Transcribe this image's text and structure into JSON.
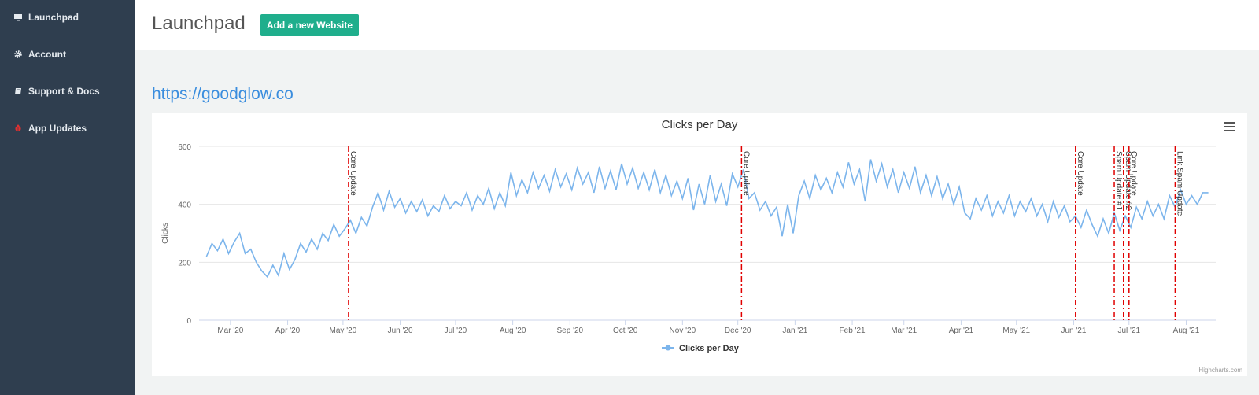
{
  "sidebar": {
    "items": [
      {
        "label": "Launchpad",
        "icon": "monitor-icon"
      },
      {
        "label": "Account",
        "icon": "gear-icon"
      },
      {
        "label": "Support & Docs",
        "icon": "book-icon"
      },
      {
        "label": "App Updates",
        "icon": "bug-icon"
      }
    ]
  },
  "header": {
    "title": "Launchpad",
    "add_button_label": "Add a new Website"
  },
  "site": {
    "url": "https://goodglow.co"
  },
  "chart_credit": "Highcharts.com",
  "colors": {
    "line": "#7cb5ec",
    "annotation": "#e00000",
    "accent": "#1fae8c",
    "sidebar": "#2f3e4f"
  },
  "chart_data": {
    "type": "line",
    "title": "Clicks per Day",
    "ylabel": "Clicks",
    "xlabel": "",
    "ylim": [
      0,
      600
    ],
    "yticks": [
      0,
      200,
      400,
      600
    ],
    "xlim": [
      "2020-02-13",
      "2021-08-17"
    ],
    "xticks": [
      {
        "date": "2020-03-01",
        "label": "Mar '20"
      },
      {
        "date": "2020-04-01",
        "label": "Apr '20"
      },
      {
        "date": "2020-05-01",
        "label": "May '20"
      },
      {
        "date": "2020-06-01",
        "label": "Jun '20"
      },
      {
        "date": "2020-07-01",
        "label": "Jul '20"
      },
      {
        "date": "2020-08-01",
        "label": "Aug '20"
      },
      {
        "date": "2020-09-01",
        "label": "Sep '20"
      },
      {
        "date": "2020-10-01",
        "label": "Oct '20"
      },
      {
        "date": "2020-11-01",
        "label": "Nov '20"
      },
      {
        "date": "2020-12-01",
        "label": "Dec '20"
      },
      {
        "date": "2021-01-01",
        "label": "Jan '21"
      },
      {
        "date": "2021-02-01",
        "label": "Feb '21"
      },
      {
        "date": "2021-03-01",
        "label": "Mar '21"
      },
      {
        "date": "2021-04-01",
        "label": "Apr '21"
      },
      {
        "date": "2021-05-01",
        "label": "May '21"
      },
      {
        "date": "2021-06-01",
        "label": "Jun '21"
      },
      {
        "date": "2021-07-01",
        "label": "Jul '21"
      },
      {
        "date": "2021-08-01",
        "label": "Aug '21"
      }
    ],
    "legend": "bottom-center",
    "grid": true,
    "series": [
      {
        "name": "Clicks per Day",
        "points": [
          {
            "date": "2020-02-17",
            "value": 220
          },
          {
            "date": "2020-02-20",
            "value": 265
          },
          {
            "date": "2020-02-23",
            "value": 240
          },
          {
            "date": "2020-02-26",
            "value": 280
          },
          {
            "date": "2020-02-29",
            "value": 230
          },
          {
            "date": "2020-03-03",
            "value": 270
          },
          {
            "date": "2020-03-06",
            "value": 300
          },
          {
            "date": "2020-03-09",
            "value": 230
          },
          {
            "date": "2020-03-12",
            "value": 245
          },
          {
            "date": "2020-03-15",
            "value": 200
          },
          {
            "date": "2020-03-18",
            "value": 170
          },
          {
            "date": "2020-03-21",
            "value": 150
          },
          {
            "date": "2020-03-24",
            "value": 190
          },
          {
            "date": "2020-03-27",
            "value": 155
          },
          {
            "date": "2020-03-30",
            "value": 230
          },
          {
            "date": "2020-04-02",
            "value": 175
          },
          {
            "date": "2020-04-05",
            "value": 210
          },
          {
            "date": "2020-04-08",
            "value": 265
          },
          {
            "date": "2020-04-11",
            "value": 235
          },
          {
            "date": "2020-04-14",
            "value": 280
          },
          {
            "date": "2020-04-17",
            "value": 245
          },
          {
            "date": "2020-04-20",
            "value": 300
          },
          {
            "date": "2020-04-23",
            "value": 275
          },
          {
            "date": "2020-04-26",
            "value": 330
          },
          {
            "date": "2020-04-29",
            "value": 290
          },
          {
            "date": "2020-05-02",
            "value": 315
          },
          {
            "date": "2020-05-05",
            "value": 345
          },
          {
            "date": "2020-05-08",
            "value": 300
          },
          {
            "date": "2020-05-11",
            "value": 355
          },
          {
            "date": "2020-05-14",
            "value": 325
          },
          {
            "date": "2020-05-17",
            "value": 390
          },
          {
            "date": "2020-05-20",
            "value": 440
          },
          {
            "date": "2020-05-23",
            "value": 380
          },
          {
            "date": "2020-05-26",
            "value": 445
          },
          {
            "date": "2020-05-29",
            "value": 390
          },
          {
            "date": "2020-06-01",
            "value": 420
          },
          {
            "date": "2020-06-04",
            "value": 370
          },
          {
            "date": "2020-06-07",
            "value": 410
          },
          {
            "date": "2020-06-10",
            "value": 375
          },
          {
            "date": "2020-06-13",
            "value": 415
          },
          {
            "date": "2020-06-16",
            "value": 360
          },
          {
            "date": "2020-06-19",
            "value": 395
          },
          {
            "date": "2020-06-22",
            "value": 375
          },
          {
            "date": "2020-06-25",
            "value": 430
          },
          {
            "date": "2020-06-28",
            "value": 385
          },
          {
            "date": "2020-07-01",
            "value": 410
          },
          {
            "date": "2020-07-04",
            "value": 395
          },
          {
            "date": "2020-07-07",
            "value": 440
          },
          {
            "date": "2020-07-10",
            "value": 380
          },
          {
            "date": "2020-07-13",
            "value": 430
          },
          {
            "date": "2020-07-16",
            "value": 400
          },
          {
            "date": "2020-07-19",
            "value": 455
          },
          {
            "date": "2020-07-22",
            "value": 385
          },
          {
            "date": "2020-07-25",
            "value": 440
          },
          {
            "date": "2020-07-28",
            "value": 395
          },
          {
            "date": "2020-07-31",
            "value": 510
          },
          {
            "date": "2020-08-03",
            "value": 430
          },
          {
            "date": "2020-08-06",
            "value": 485
          },
          {
            "date": "2020-08-09",
            "value": 440
          },
          {
            "date": "2020-08-12",
            "value": 510
          },
          {
            "date": "2020-08-15",
            "value": 455
          },
          {
            "date": "2020-08-18",
            "value": 500
          },
          {
            "date": "2020-08-21",
            "value": 445
          },
          {
            "date": "2020-08-24",
            "value": 520
          },
          {
            "date": "2020-08-27",
            "value": 460
          },
          {
            "date": "2020-08-30",
            "value": 505
          },
          {
            "date": "2020-09-02",
            "value": 450
          },
          {
            "date": "2020-09-05",
            "value": 525
          },
          {
            "date": "2020-09-08",
            "value": 470
          },
          {
            "date": "2020-09-11",
            "value": 510
          },
          {
            "date": "2020-09-14",
            "value": 440
          },
          {
            "date": "2020-09-17",
            "value": 530
          },
          {
            "date": "2020-09-20",
            "value": 455
          },
          {
            "date": "2020-09-23",
            "value": 515
          },
          {
            "date": "2020-09-26",
            "value": 450
          },
          {
            "date": "2020-09-29",
            "value": 540
          },
          {
            "date": "2020-10-02",
            "value": 470
          },
          {
            "date": "2020-10-05",
            "value": 525
          },
          {
            "date": "2020-10-08",
            "value": 455
          },
          {
            "date": "2020-10-11",
            "value": 510
          },
          {
            "date": "2020-10-14",
            "value": 450
          },
          {
            "date": "2020-10-17",
            "value": 520
          },
          {
            "date": "2020-10-20",
            "value": 440
          },
          {
            "date": "2020-10-23",
            "value": 500
          },
          {
            "date": "2020-10-26",
            "value": 430
          },
          {
            "date": "2020-10-29",
            "value": 480
          },
          {
            "date": "2020-11-01",
            "value": 420
          },
          {
            "date": "2020-11-04",
            "value": 490
          },
          {
            "date": "2020-11-07",
            "value": 380
          },
          {
            "date": "2020-11-10",
            "value": 470
          },
          {
            "date": "2020-11-13",
            "value": 400
          },
          {
            "date": "2020-11-16",
            "value": 500
          },
          {
            "date": "2020-11-19",
            "value": 410
          },
          {
            "date": "2020-11-22",
            "value": 470
          },
          {
            "date": "2020-11-25",
            "value": 395
          },
          {
            "date": "2020-11-28",
            "value": 505
          },
          {
            "date": "2020-12-01",
            "value": 460
          },
          {
            "date": "2020-12-04",
            "value": 520
          },
          {
            "date": "2020-12-07",
            "value": 420
          },
          {
            "date": "2020-12-10",
            "value": 440
          },
          {
            "date": "2020-12-13",
            "value": 380
          },
          {
            "date": "2020-12-16",
            "value": 410
          },
          {
            "date": "2020-12-19",
            "value": 360
          },
          {
            "date": "2020-12-22",
            "value": 390
          },
          {
            "date": "2020-12-25",
            "value": 290
          },
          {
            "date": "2020-12-28",
            "value": 400
          },
          {
            "date": "2020-12-31",
            "value": 300
          },
          {
            "date": "2021-01-03",
            "value": 430
          },
          {
            "date": "2021-01-06",
            "value": 480
          },
          {
            "date": "2021-01-09",
            "value": 420
          },
          {
            "date": "2021-01-12",
            "value": 500
          },
          {
            "date": "2021-01-15",
            "value": 450
          },
          {
            "date": "2021-01-18",
            "value": 490
          },
          {
            "date": "2021-01-21",
            "value": 440
          },
          {
            "date": "2021-01-24",
            "value": 510
          },
          {
            "date": "2021-01-27",
            "value": 460
          },
          {
            "date": "2021-01-30",
            "value": 545
          },
          {
            "date": "2021-02-02",
            "value": 470
          },
          {
            "date": "2021-02-05",
            "value": 520
          },
          {
            "date": "2021-02-08",
            "value": 410
          },
          {
            "date": "2021-02-11",
            "value": 555
          },
          {
            "date": "2021-02-14",
            "value": 480
          },
          {
            "date": "2021-02-17",
            "value": 540
          },
          {
            "date": "2021-02-20",
            "value": 460
          },
          {
            "date": "2021-02-23",
            "value": 520
          },
          {
            "date": "2021-02-26",
            "value": 440
          },
          {
            "date": "2021-03-01",
            "value": 510
          },
          {
            "date": "2021-03-04",
            "value": 455
          },
          {
            "date": "2021-03-07",
            "value": 530
          },
          {
            "date": "2021-03-10",
            "value": 440
          },
          {
            "date": "2021-03-13",
            "value": 500
          },
          {
            "date": "2021-03-16",
            "value": 430
          },
          {
            "date": "2021-03-19",
            "value": 495
          },
          {
            "date": "2021-03-22",
            "value": 420
          },
          {
            "date": "2021-03-25",
            "value": 470
          },
          {
            "date": "2021-03-28",
            "value": 400
          },
          {
            "date": "2021-03-31",
            "value": 460
          },
          {
            "date": "2021-04-03",
            "value": 370
          },
          {
            "date": "2021-04-06",
            "value": 350
          },
          {
            "date": "2021-04-09",
            "value": 420
          },
          {
            "date": "2021-04-12",
            "value": 380
          },
          {
            "date": "2021-04-15",
            "value": 430
          },
          {
            "date": "2021-04-18",
            "value": 360
          },
          {
            "date": "2021-04-21",
            "value": 410
          },
          {
            "date": "2021-04-24",
            "value": 370
          },
          {
            "date": "2021-04-27",
            "value": 430
          },
          {
            "date": "2021-04-30",
            "value": 360
          },
          {
            "date": "2021-05-03",
            "value": 410
          },
          {
            "date": "2021-05-06",
            "value": 375
          },
          {
            "date": "2021-05-09",
            "value": 420
          },
          {
            "date": "2021-05-12",
            "value": 360
          },
          {
            "date": "2021-05-15",
            "value": 400
          },
          {
            "date": "2021-05-18",
            "value": 340
          },
          {
            "date": "2021-05-21",
            "value": 410
          },
          {
            "date": "2021-05-24",
            "value": 355
          },
          {
            "date": "2021-05-27",
            "value": 395
          },
          {
            "date": "2021-05-30",
            "value": 340
          },
          {
            "date": "2021-06-02",
            "value": 360
          },
          {
            "date": "2021-06-05",
            "value": 320
          },
          {
            "date": "2021-06-08",
            "value": 380
          },
          {
            "date": "2021-06-11",
            "value": 330
          },
          {
            "date": "2021-06-14",
            "value": 290
          },
          {
            "date": "2021-06-17",
            "value": 350
          },
          {
            "date": "2021-06-20",
            "value": 300
          },
          {
            "date": "2021-06-23",
            "value": 370
          },
          {
            "date": "2021-06-26",
            "value": 310
          },
          {
            "date": "2021-06-29",
            "value": 360
          },
          {
            "date": "2021-07-02",
            "value": 320
          },
          {
            "date": "2021-07-05",
            "value": 390
          },
          {
            "date": "2021-07-08",
            "value": 350
          },
          {
            "date": "2021-07-11",
            "value": 410
          },
          {
            "date": "2021-07-14",
            "value": 360
          },
          {
            "date": "2021-07-17",
            "value": 400
          },
          {
            "date": "2021-07-20",
            "value": 350
          },
          {
            "date": "2021-07-23",
            "value": 430
          },
          {
            "date": "2021-07-26",
            "value": 390
          },
          {
            "date": "2021-07-29",
            "value": 450
          },
          {
            "date": "2021-08-01",
            "value": 400
          },
          {
            "date": "2021-08-04",
            "value": 430
          },
          {
            "date": "2021-08-07",
            "value": 400
          },
          {
            "date": "2021-08-10",
            "value": 440
          },
          {
            "date": "2021-08-13",
            "value": 440
          }
        ]
      }
    ],
    "annotations": [
      {
        "date": "2020-05-04",
        "label": "Core Update"
      },
      {
        "date": "2020-12-03",
        "label": "Core Update"
      },
      {
        "date": "2021-06-02",
        "label": "Core Update"
      },
      {
        "date": "2021-06-23",
        "label": "Spam Update #1"
      },
      {
        "date": "2021-06-28",
        "label": "Spam Update #2"
      },
      {
        "date": "2021-07-01",
        "label": "Core Update"
      },
      {
        "date": "2021-07-26",
        "label": "Link Spam Update"
      }
    ]
  }
}
